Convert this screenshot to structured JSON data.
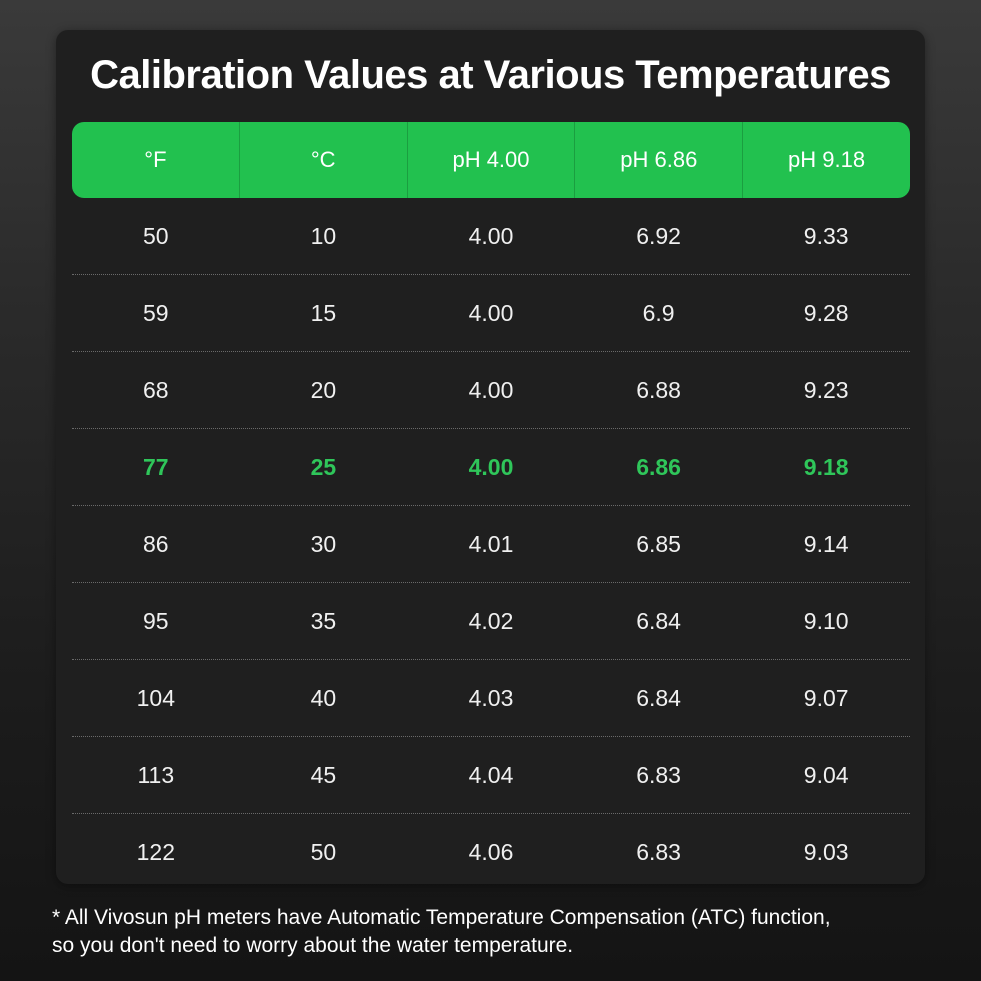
{
  "title": "Calibration Values at Various Temperatures",
  "table": {
    "headers": [
      "°F",
      "°C",
      "pH 4.00",
      "pH 6.86",
      "pH 9.18"
    ],
    "rows": [
      [
        "50",
        "10",
        "4.00",
        "6.92",
        "9.33"
      ],
      [
        "59",
        "15",
        "4.00",
        "6.9",
        "9.28"
      ],
      [
        "68",
        "20",
        "4.00",
        "6.88",
        "9.23"
      ],
      [
        "77",
        "25",
        "4.00",
        "6.86",
        "9.18"
      ],
      [
        "86",
        "30",
        "4.01",
        "6.85",
        "9.14"
      ],
      [
        "95",
        "35",
        "4.02",
        "6.84",
        "9.10"
      ],
      [
        "104",
        "40",
        "4.03",
        "6.84",
        "9.07"
      ],
      [
        "113",
        "45",
        "4.04",
        "6.83",
        "9.04"
      ],
      [
        "122",
        "50",
        "4.06",
        "6.83",
        "9.03"
      ]
    ],
    "highlight_row": 3
  },
  "footnote": {
    "line1": "* All Vivosun pH meters have Automatic Temperature Compensation (ATC) function,",
    "line2": "so you don't need to worry about the water temperature."
  },
  "colors": {
    "accent": "#22c14f",
    "highlight_text": "#2fc65a",
    "card_bg": "#1f1f1f"
  }
}
